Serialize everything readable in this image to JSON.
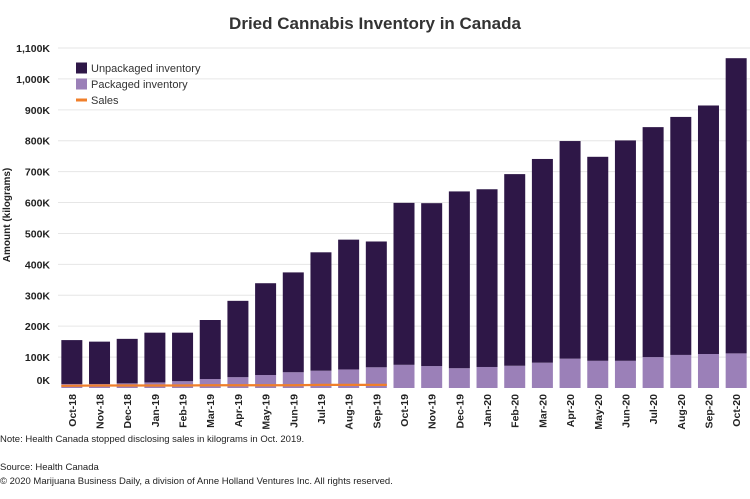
{
  "chart_data": {
    "type": "bar",
    "stacked": true,
    "title": "Dried Cannabis Inventory in Canada",
    "ylabel": "Amount (kilograms)",
    "xlabel": "",
    "ylim": [
      0,
      1100000
    ],
    "yticks": [
      {
        "value": 0,
        "label": "0K"
      },
      {
        "value": 100000,
        "label": "100K"
      },
      {
        "value": 200000,
        "label": "200K"
      },
      {
        "value": 300000,
        "label": "300K"
      },
      {
        "value": 400000,
        "label": "400K"
      },
      {
        "value": 500000,
        "label": "500K"
      },
      {
        "value": 600000,
        "label": "600K"
      },
      {
        "value": 700000,
        "label": "700K"
      },
      {
        "value": 800000,
        "label": "800K"
      },
      {
        "value": 900000,
        "label": "900K"
      },
      {
        "value": 1000000,
        "label": "1,000K"
      },
      {
        "value": 1100000,
        "label": "1,100K"
      }
    ],
    "categories": [
      "Oct-18",
      "Nov-18",
      "Dec-18",
      "Jan-19",
      "Feb-19",
      "Mar-19",
      "Apr-19",
      "May-19",
      "Jun-19",
      "Jul-19",
      "Aug-19",
      "Sep-19",
      "Oct-19",
      "Nov-19",
      "Dec-19",
      "Jan-20",
      "Feb-20",
      "Mar-20",
      "Apr-20",
      "May-20",
      "Jun-20",
      "Jul-20",
      "Aug-20",
      "Sep-20",
      "Oct-20"
    ],
    "legend_position": "top-left",
    "series": [
      {
        "name": "Unpackaged inventory",
        "color": "#2e1747",
        "kind": "bar",
        "values": [
          142000,
          137000,
          144000,
          161000,
          157000,
          191000,
          247000,
          297000,
          323000,
          383000,
          420000,
          407000,
          524000,
          527000,
          572000,
          575000,
          620000,
          659000,
          704000,
          660000,
          713000,
          744000,
          770000,
          804000,
          955000
        ]
      },
      {
        "name": "Packaged inventory",
        "color": "#9b80b8",
        "kind": "bar",
        "values": [
          13000,
          13000,
          15000,
          18000,
          22000,
          29000,
          35000,
          42000,
          51000,
          56000,
          60000,
          67000,
          75000,
          71000,
          64000,
          68000,
          72000,
          82000,
          95000,
          88000,
          88000,
          100000,
          107000,
          110000,
          112000
        ]
      },
      {
        "name": "Sales",
        "color": "#f07f2a",
        "kind": "line",
        "values": [
          7000,
          8000,
          8000,
          8000,
          8000,
          9000,
          9000,
          9000,
          9000,
          10000,
          10000,
          10000,
          null,
          null,
          null,
          null,
          null,
          null,
          null,
          null,
          null,
          null,
          null,
          null,
          null
        ]
      }
    ],
    "notes": [
      "Note: Health Canada stopped disclosing sales in kilograms in Oct. 2019.",
      "Source: Health Canada",
      "© 2020 Marijuana Business Daily, a division of Anne Holland Ventures Inc. All rights reserved."
    ]
  }
}
